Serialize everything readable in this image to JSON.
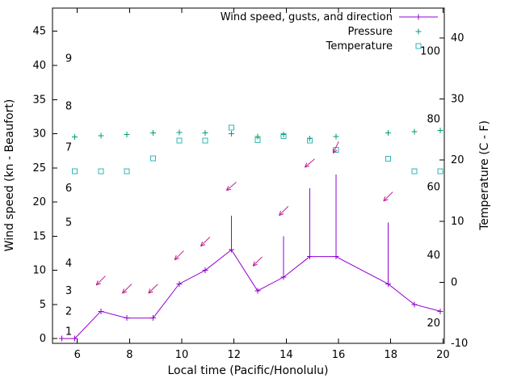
{
  "chart_data": {
    "type": "line",
    "title": "",
    "xlabel": "Local time (Pacific/Honolulu)",
    "ylabel": "Wind speed (kn - Beaufort)",
    "y2label": "Temperature (C - F)",
    "xlim": [
      5.05,
      20.05
    ],
    "ylim": [
      -0.7,
      48.4
    ],
    "y2lim": [
      -10,
      44.9
    ],
    "x_ticks": [
      6,
      8,
      10,
      12,
      14,
      16,
      18,
      20
    ],
    "y_ticks": [
      0,
      5,
      10,
      15,
      20,
      25,
      30,
      35,
      40,
      45
    ],
    "y2_ticks": [
      -10,
      0,
      10,
      20,
      30,
      40
    ],
    "grid": false,
    "legend_position": "top-right-inside",
    "beaufort_scale_labels": [
      {
        "text": "1",
        "kn": 1
      },
      {
        "text": "2",
        "kn": 4
      },
      {
        "text": "3",
        "kn": 7
      },
      {
        "text": "4",
        "kn": 11
      },
      {
        "text": "5",
        "kn": 17
      },
      {
        "text": "6",
        "kn": 22
      },
      {
        "text": "7",
        "kn": 28
      },
      {
        "text": "8",
        "kn": 34
      },
      {
        "text": "9",
        "kn": 41
      }
    ],
    "fahrenheit_scale_labels": [
      {
        "text": "100",
        "c": 37.8
      },
      {
        "text": "80",
        "c": 26.7
      },
      {
        "text": "60",
        "c": 15.6
      },
      {
        "text": "40",
        "c": 4.4
      },
      {
        "text": "20",
        "c": -6.7
      }
    ],
    "legend": [
      {
        "label": "Wind speed, gusts, and direction",
        "marker": "line-plus",
        "color": "#9400d3"
      },
      {
        "label": "Pressure",
        "marker": "plus",
        "color": "#009e73"
      },
      {
        "label": "Temperature",
        "marker": "square",
        "color": "#33b5b5"
      }
    ],
    "x": [
      5.4,
      5.9,
      6.9,
      7.9,
      8.9,
      9.9,
      10.9,
      11.9,
      12.9,
      13.9,
      14.9,
      15.9,
      17.9,
      18.9,
      19.9
    ],
    "series": [
      {
        "name": "wind_speed_kn",
        "axis": "left",
        "color": "#9400d3",
        "values": [
          0,
          0,
          4,
          3,
          3,
          8,
          10,
          13,
          7,
          9,
          12,
          12,
          8,
          5,
          4
        ]
      },
      {
        "name": "wind_gust_kn",
        "axis": "left",
        "color": "#9400d3",
        "values": [
          0,
          0,
          4,
          3,
          3,
          8,
          10,
          18,
          7,
          15,
          22,
          24,
          17,
          5,
          4
        ]
      },
      {
        "name": "pressure",
        "axis": "left",
        "color": "#009e73",
        "values": [
          null,
          29.5,
          29.7,
          29.9,
          30.1,
          30.2,
          30.1,
          30.0,
          29.6,
          29.9,
          29.3,
          29.6,
          30.1,
          30.3,
          30.5
        ]
      },
      {
        "name": "temperature_c",
        "axis": "right",
        "color": "#33b5b5",
        "values": [
          null,
          18.2,
          18.2,
          18.2,
          20.3,
          23.2,
          23.2,
          25.3,
          23.3,
          23.9,
          23.2,
          21.7,
          20.2,
          18.2,
          18.2
        ]
      }
    ],
    "wind_direction_arrows": [
      {
        "x": 6.9,
        "kn": 8.5,
        "angle_deg": 135
      },
      {
        "x": 7.9,
        "kn": 7.3,
        "angle_deg": 135
      },
      {
        "x": 8.9,
        "kn": 7.3,
        "angle_deg": 135
      },
      {
        "x": 9.9,
        "kn": 12.2,
        "angle_deg": 135
      },
      {
        "x": 10.9,
        "kn": 14.2,
        "angle_deg": 135
      },
      {
        "x": 11.9,
        "kn": 22.3,
        "angle_deg": 140
      },
      {
        "x": 12.9,
        "kn": 11.3,
        "angle_deg": 135
      },
      {
        "x": 13.9,
        "kn": 18.7,
        "angle_deg": 135
      },
      {
        "x": 14.9,
        "kn": 25.7,
        "angle_deg": 140
      },
      {
        "x": 15.9,
        "kn": 28.0,
        "angle_deg": 115
      },
      {
        "x": 17.9,
        "kn": 20.8,
        "angle_deg": 135
      }
    ]
  },
  "colors": {
    "wind": "#9400d3",
    "gust": "#9400d3",
    "arrow": "#c02090",
    "pressure": "#009e73",
    "temperature": "#33b5b5",
    "axis": "#000000",
    "background": "#ffffff"
  }
}
